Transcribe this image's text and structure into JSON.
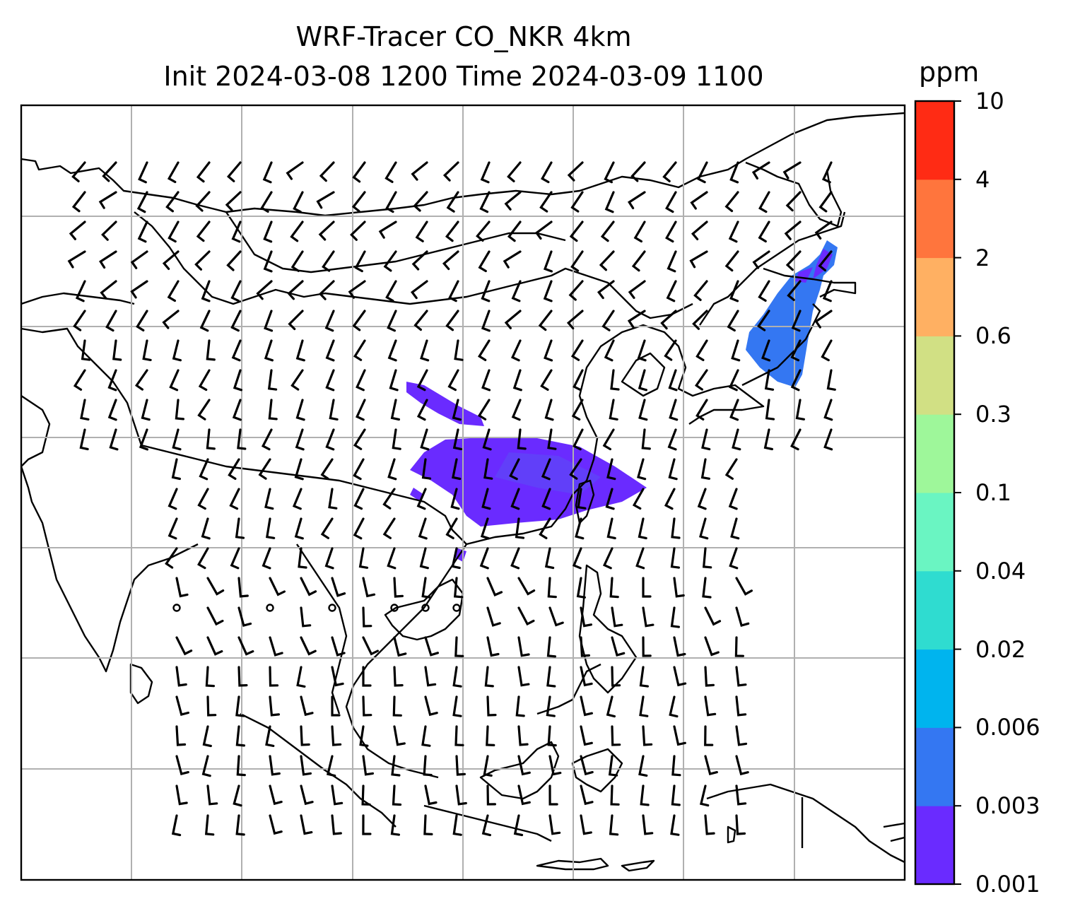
{
  "title": {
    "line1": "WRF-Tracer CO_NKR 4km",
    "line2": "Init 2024-03-08 1200 Time 2024-03-09 1100"
  },
  "colorbar": {
    "unit": "ppm",
    "levels": [
      "0.001",
      "0.003",
      "0.006",
      "0.02",
      "0.04",
      "0.1",
      "0.3",
      "0.6",
      "2",
      "4",
      "10"
    ],
    "colors": [
      "#6a2bff",
      "#3477f2",
      "#00b4ee",
      "#2fdcd0",
      "#6af5c2",
      "#9ef79a",
      "#d1e084",
      "#ffb062",
      "#ff753d",
      "#ff2b14"
    ]
  },
  "map": {
    "plume_colors": {
      "low": "#6a2bff",
      "mid": "#3477f2"
    },
    "coastline_color": "#000000",
    "gridline_color": "#b0b0b0",
    "wind_barbs": "black"
  }
}
